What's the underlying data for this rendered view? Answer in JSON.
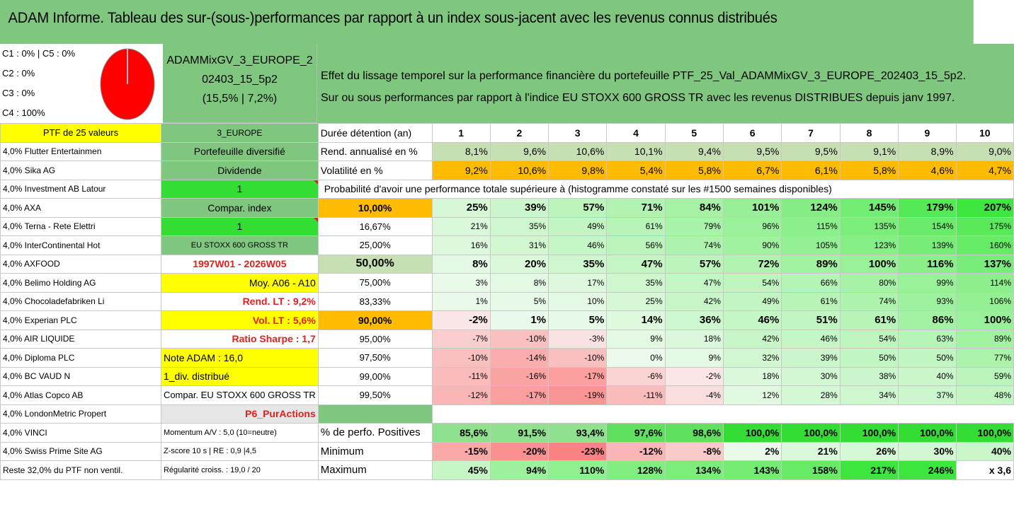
{
  "title": "ADAM Informe. Tableau des sur-(sous-)performances par rapport à un index sous-jacent avec les revenus connus distribués",
  "pie": {
    "lines": [
      "C1 : 0% | C5 : 0%",
      "C2 : 0%",
      "C3 : 0%",
      "C4 : 100%"
    ],
    "color": "#ff0000"
  },
  "fund": {
    "line1": "ADAMMixGV_3_EUROPE_2",
    "line2": "02403_15_5p2",
    "line3": "(15,5% | 7,2%)"
  },
  "effet": {
    "line1": "Effet du lissage temporel sur la performance financière du portefeuille PTF_25_Val_ADAMMixGV_3_EUROPE_202403_15_5p2.",
    "line2": "Sur ou sous performances par rapport à l'indice EU STOXX 600 GROSS TR avec les revenus DISTRIBUES depuis janv 1997."
  },
  "header": {
    "ptf": "PTF de 25 valeurs",
    "region": "3_EUROPE",
    "duree": "Durée détention (an)",
    "years": [
      "1",
      "2",
      "3",
      "4",
      "5",
      "6",
      "7",
      "8",
      "9",
      "10"
    ]
  },
  "rend": {
    "label": "Rend. annualisé en %",
    "values": [
      "8,1%",
      "9,6%",
      "10,6%",
      "10,1%",
      "9,4%",
      "9,5%",
      "9,5%",
      "9,1%",
      "8,9%",
      "9,0%"
    ]
  },
  "vol": {
    "label": "Volatilité en %",
    "values": [
      "9,2%",
      "10,6%",
      "9,8%",
      "5,4%",
      "5,8%",
      "6,7%",
      "6,1%",
      "5,8%",
      "4,6%",
      "4,7%"
    ]
  },
  "proba_title": "Probabilité d'avoir une performance totale supérieure à (histogramme constaté sur les #1500 semaines disponibles)",
  "holdings": [
    "4,0% Flutter Entertainmen",
    "4,0% Sika AG",
    "4,0% Investment AB Latour",
    "4,0% AXA",
    "4,0% Terna - Rete Elettri",
    "4,0% InterContinental Hot",
    "4,0% AXFOOD",
    "4,0% Belimo Holding AG",
    "4,0% Chocoladefabriken Li",
    "4,0% Experian PLC",
    "4,0% AIR LIQUIDE",
    "4,0% Diploma PLC",
    "4,0% BC VAUD N",
    "4,0% Atlas Copco AB",
    "4,0% LondonMetric Propert",
    "4,0% VINCI",
    "4,0% Swiss Prime Site AG",
    "Reste 32,0% du PTF non ventil."
  ],
  "col2": {
    "portefeuille": "Portefeuille diversifié",
    "dividende": "Dividende",
    "one_a": "1",
    "compar": "Compar. index",
    "one_b": "1",
    "index": "EU STOXX 600 GROSS TR",
    "period": "1997W01 - 2026W05",
    "moy": "Moy. A06 - A10",
    "rend_lt": "Rend. LT : 9,2%",
    "vol_lt": "Vol. LT : 5,6%",
    "sharpe": "Ratio Sharpe : 1,7",
    "note": "Note ADAM : 16,0",
    "div": "1_div. distribué",
    "compar_eu": "Compar. EU STOXX 600 GROSS TR",
    "p6": "P6_PurActions",
    "momentum": "Momentum A/V : 5,0 (10=neutre)",
    "zscore": "Z-score 10 s | RE : 0,9 |4,5",
    "regul": "Régularité croiss. : 19,0 / 20"
  },
  "proba_rows": [
    {
      "p": "10,00%",
      "v": [
        "25%",
        "39%",
        "57%",
        "71%",
        "84%",
        "101%",
        "124%",
        "145%",
        "179%",
        "207%"
      ]
    },
    {
      "p": "16,67%",
      "v": [
        "21%",
        "35%",
        "49%",
        "61%",
        "79%",
        "96%",
        "115%",
        "135%",
        "154%",
        "175%"
      ]
    },
    {
      "p": "25,00%",
      "v": [
        "16%",
        "31%",
        "46%",
        "56%",
        "74%",
        "90%",
        "105%",
        "123%",
        "139%",
        "160%"
      ]
    },
    {
      "p": "50,00%",
      "v": [
        "8%",
        "20%",
        "35%",
        "47%",
        "57%",
        "72%",
        "89%",
        "100%",
        "116%",
        "137%"
      ]
    },
    {
      "p": "75,00%",
      "v": [
        "3%",
        "8%",
        "17%",
        "35%",
        "47%",
        "54%",
        "66%",
        "80%",
        "99%",
        "114%"
      ]
    },
    {
      "p": "83,33%",
      "v": [
        "1%",
        "5%",
        "10%",
        "25%",
        "42%",
        "49%",
        "61%",
        "74%",
        "93%",
        "106%"
      ]
    },
    {
      "p": "90,00%",
      "v": [
        "-2%",
        "1%",
        "5%",
        "14%",
        "36%",
        "46%",
        "51%",
        "61%",
        "86%",
        "100%"
      ]
    },
    {
      "p": "95,00%",
      "v": [
        "-7%",
        "-10%",
        "-3%",
        "9%",
        "18%",
        "42%",
        "46%",
        "54%",
        "63%",
        "89%"
      ]
    },
    {
      "p": "97,50%",
      "v": [
        "-10%",
        "-14%",
        "-10%",
        "0%",
        "9%",
        "32%",
        "39%",
        "50%",
        "50%",
        "77%"
      ]
    },
    {
      "p": "99,00%",
      "v": [
        "-11%",
        "-16%",
        "-17%",
        "-6%",
        "-2%",
        "18%",
        "30%",
        "38%",
        "40%",
        "59%"
      ]
    },
    {
      "p": "99,50%",
      "v": [
        "-12%",
        "-17%",
        "-19%",
        "-11%",
        "-4%",
        "12%",
        "28%",
        "34%",
        "37%",
        "48%"
      ]
    }
  ],
  "positives": {
    "label": "% de perfo. Positives",
    "values": [
      "85,6%",
      "91,5%",
      "93,4%",
      "97,6%",
      "98,6%",
      "100,0%",
      "100,0%",
      "100,0%",
      "100,0%",
      "100,0%"
    ]
  },
  "minimum": {
    "label": "Minimum",
    "values": [
      "-15%",
      "-20%",
      "-23%",
      "-12%",
      "-8%",
      "2%",
      "21%",
      "26%",
      "30%",
      "40%"
    ]
  },
  "maximum": {
    "label": "Maximum",
    "values": [
      "45%",
      "94%",
      "110%",
      "128%",
      "134%",
      "143%",
      "158%",
      "217%",
      "246%",
      "x 3,6"
    ]
  }
}
